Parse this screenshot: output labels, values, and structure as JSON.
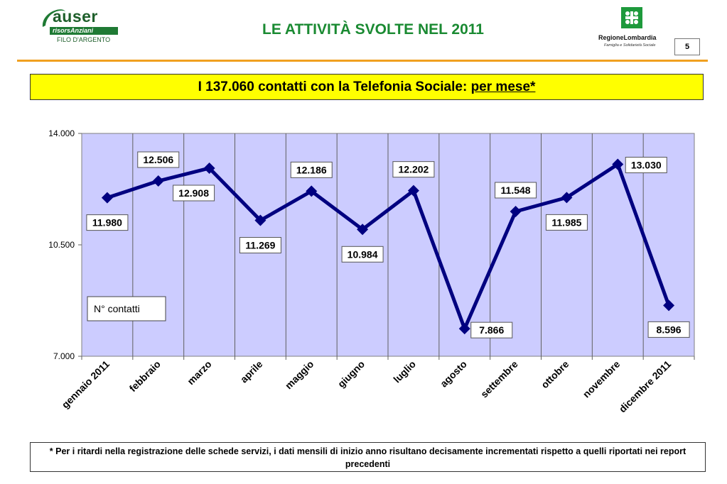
{
  "header": {
    "title": "LE ATTIVITÀ SVOLTE NEL 2011",
    "page_number": "5",
    "left_logo": {
      "name": "auser",
      "sub": "risorsAnziani",
      "tagline": "FILO D'ARGENTO"
    },
    "right_logo": {
      "name": "RegioneLombardia",
      "sub": "Famiglia e Solidarietà Sociale"
    }
  },
  "headline": {
    "text": "I 137.060 contatti con la Telefonia Sociale: ",
    "underlined": "per mese*"
  },
  "colors": {
    "plot_bg": "#ccccff",
    "line": "#000080",
    "accent_green": "#1a8a32",
    "rule_orange": "#f0a020",
    "headline_bg": "#ffff00"
  },
  "chart_data": {
    "type": "line",
    "categories": [
      "gennaio 2011",
      "febbraio",
      "marzo",
      "aprile",
      "maggio",
      "giugno",
      "luglio",
      "agosto",
      "settembre",
      "ottobre",
      "novembre",
      "dicembre 2011"
    ],
    "series": [
      {
        "name": "N° contatti",
        "values": [
          11980,
          12506,
          12908,
          11269,
          12186,
          10984,
          12202,
          7866,
          11548,
          11985,
          13030,
          8596
        ],
        "labels": [
          "11.980",
          "12.506",
          "12.908",
          "11.269",
          "12.186",
          "10.984",
          "12.202",
          "7.866",
          "11.548",
          "11.985",
          "13.030",
          "8.596"
        ]
      }
    ],
    "ylim": [
      7000,
      14000
    ],
    "yticks": [
      7000,
      10500,
      14000
    ],
    "ytick_labels": [
      "7.000",
      "10.500",
      "14.000"
    ],
    "grid": "vertical",
    "legend": "left"
  },
  "footnote": "* Per i ritardi nella registrazione delle schede servizi, i dati mensili di inizio anno risultano decisamente incrementati rispetto a quelli riportati nei report precedenti"
}
